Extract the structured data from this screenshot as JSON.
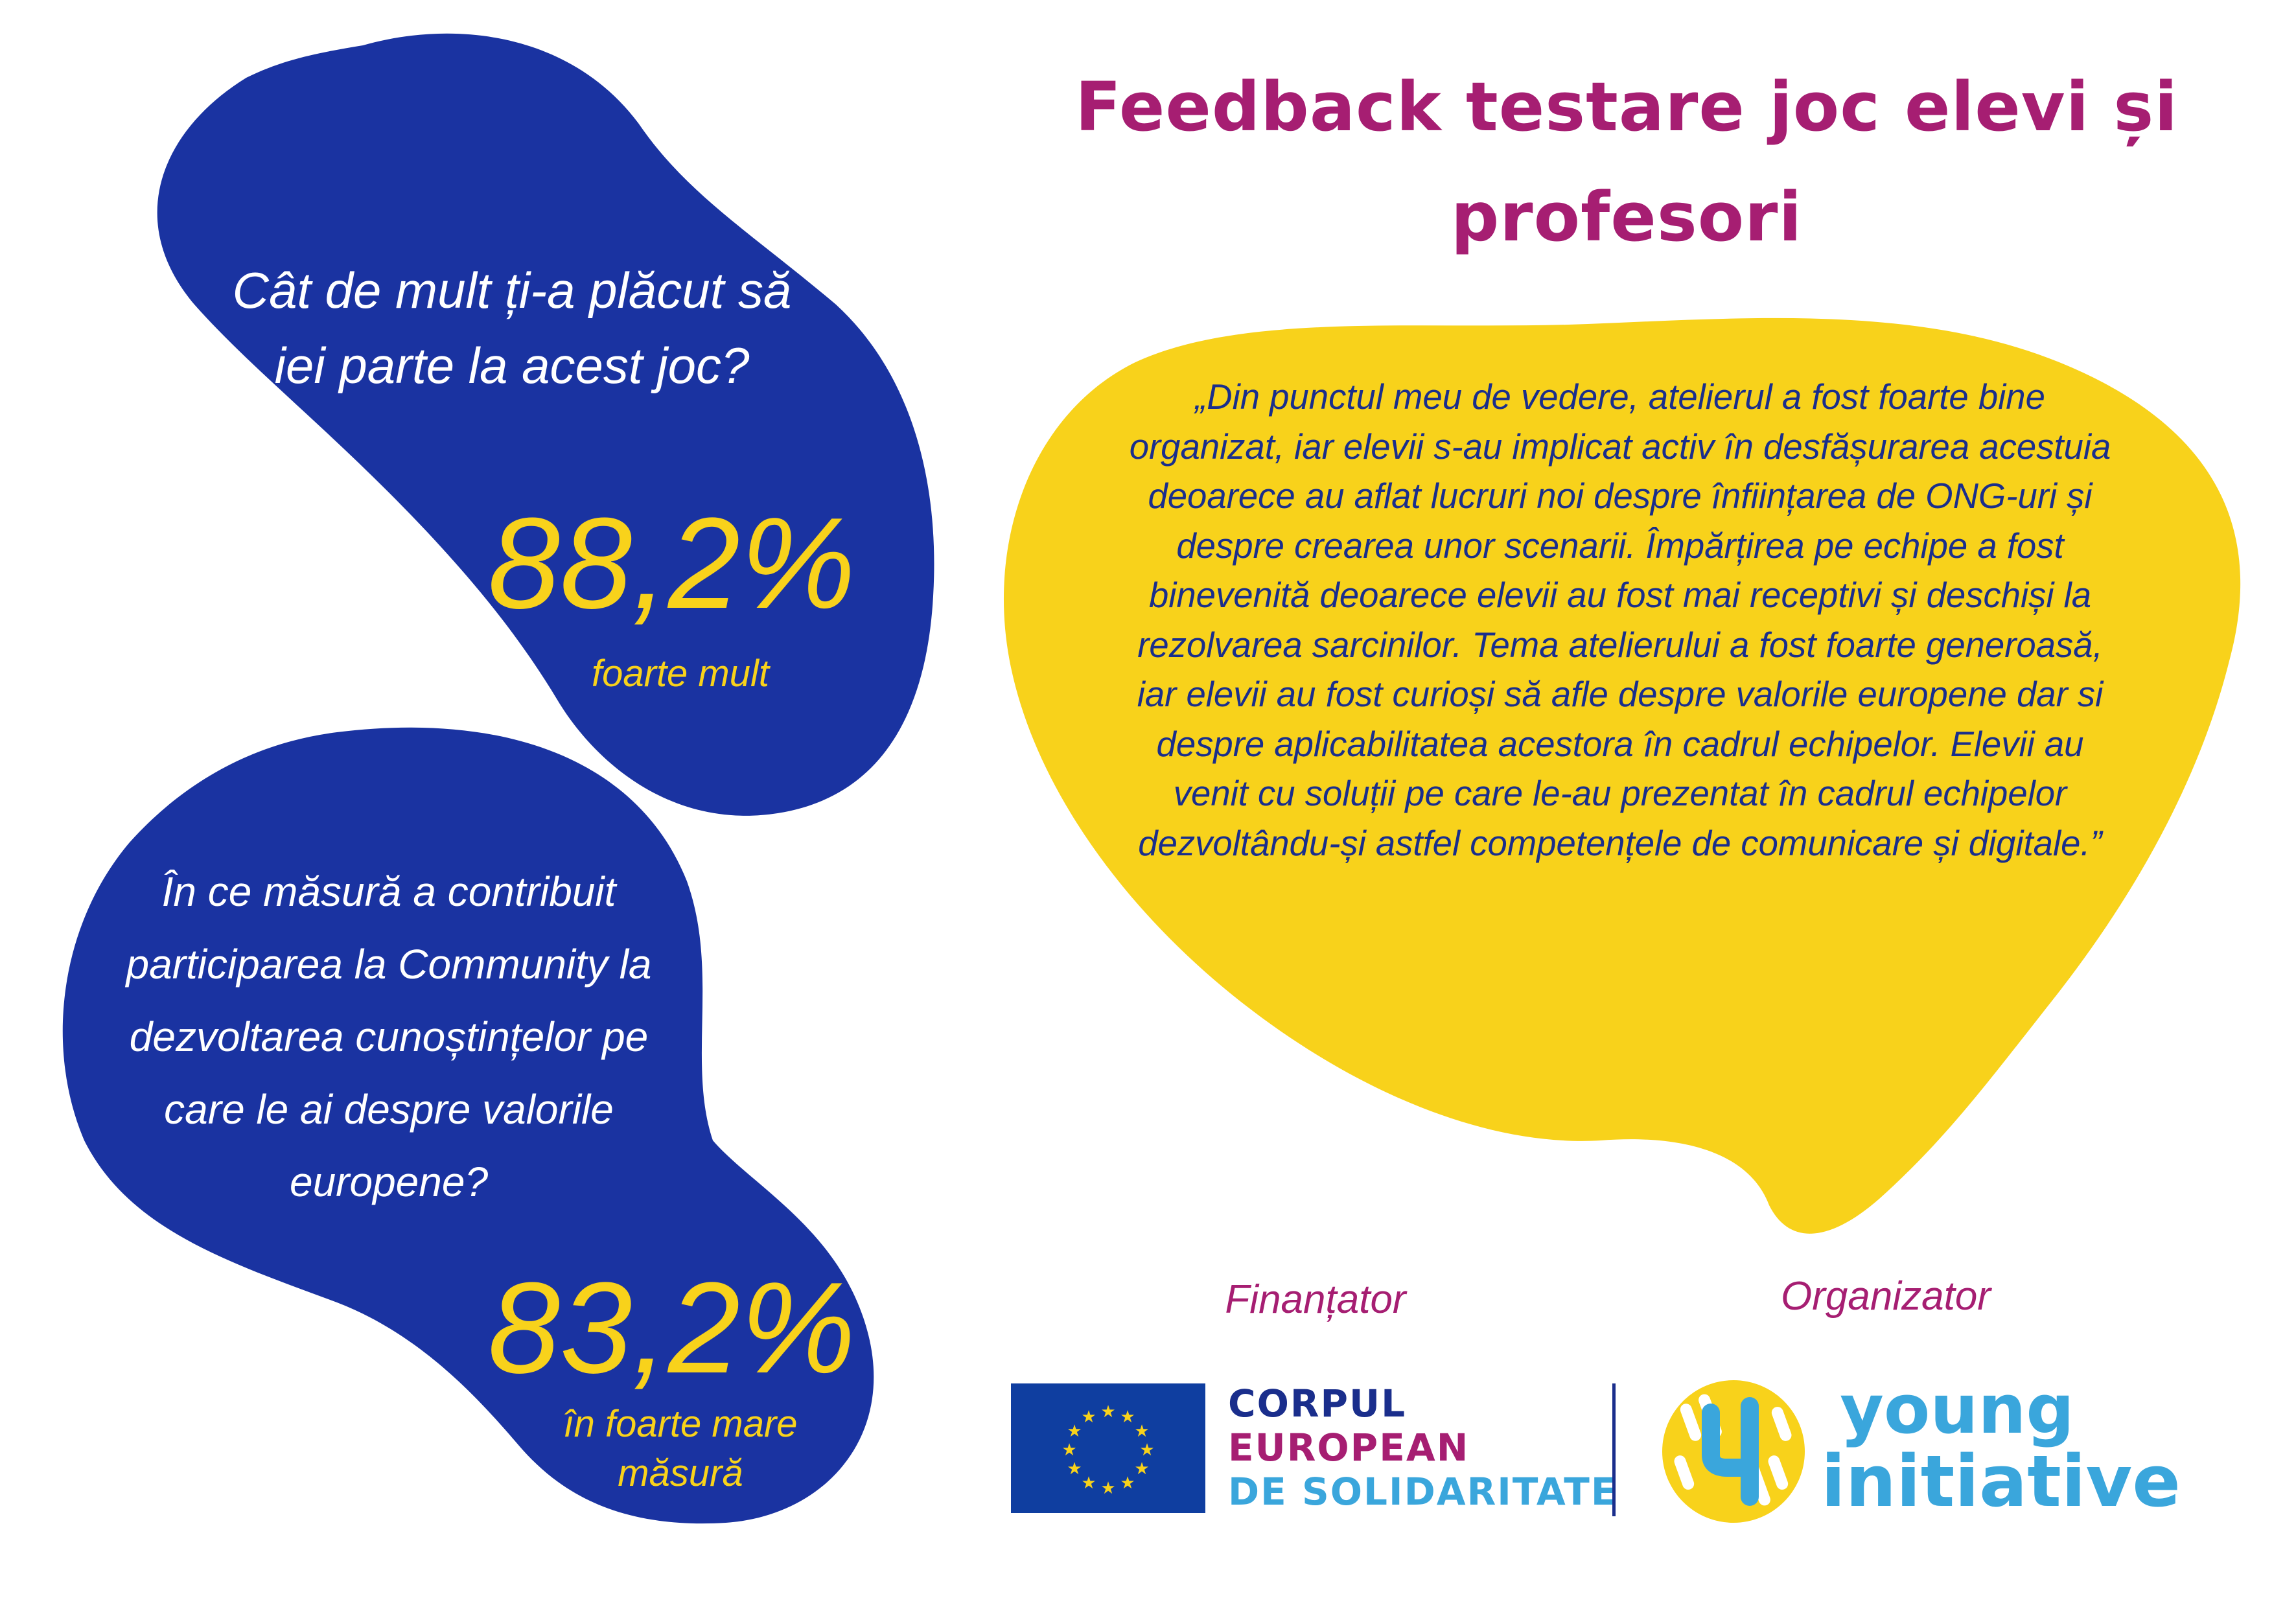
{
  "title": "Feedback testare joc elevi și profesori",
  "colors": {
    "blue": "#1a33a1",
    "yellow": "#f8d21b",
    "magenta": "#a61e72",
    "light_blue": "#3aa6dc"
  },
  "stat1": {
    "question": "Cât de mult ți-a plăcut să iei parte la acest joc?",
    "percent": "88,2%",
    "caption": "foarte mult"
  },
  "stat2": {
    "question": "În ce măsură a contribuit participarea la Community la dezvoltarea cunoștințelor pe care le ai despre valorile europene?",
    "percent": "83,2%",
    "caption": "în foarte mare măsură"
  },
  "quote": "„Din punctul meu de vedere, atelierul a fost foarte bine organizat, iar elevii s-au implicat activ în desfășurarea acestuia deoarece au aflat lucruri noi despre înființarea de ONG-uri și despre crearea unor scenarii. Împărțirea pe echipe a fost binevenită deoarece elevii au fost mai receptivi și deschiși la rezolvarea sarcinilor. Tema atelierului a fost foarte generoasă, iar elevii au fost curioși să afle despre valorile europene dar si despre aplicabilitatea acestora în cadrul echipelor. Elevii au venit cu soluții pe care le-au prezentat în cadrul echipelor dezvoltându-și astfel competențele de comunicare și digitale.”",
  "footer": {
    "funder_label": "Finanțator",
    "organizer_label": "Organizator",
    "funder_logo": {
      "icon": "eu-flag-icon",
      "line1": "CORPUL",
      "line2": "EUROPEAN",
      "line3": "DE SOLIDARITATE"
    },
    "organizer_logo": {
      "icon": "young-initiative-icon",
      "line1": "young",
      "line2": "initiative"
    }
  }
}
